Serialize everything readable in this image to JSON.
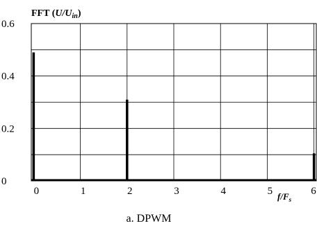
{
  "chart_data": {
    "type": "bar",
    "title": "FFT (U/Uᵢₙ)",
    "title_parts": {
      "prefix": "FFT (",
      "var": "U",
      "sep": "/",
      "var2": "U",
      "sub": "in",
      "suffix": ")"
    },
    "xlabel": "f/Fₛ",
    "xlabel_parts": {
      "main": "f/F",
      "sub": "s"
    },
    "caption": "a. DPWM",
    "xlim": [
      -0.05,
      6.05
    ],
    "ylim": [
      0,
      0.6
    ],
    "x_ticks": [
      0,
      1,
      2,
      3,
      4,
      5,
      6
    ],
    "x_tick_labels": [
      "0",
      "1",
      "2",
      "3",
      "4",
      "5",
      "6"
    ],
    "y_ticks": [
      0,
      0.2,
      0.4,
      0.6
    ],
    "y_tick_labels": [
      "0",
      "0.2",
      "0.4",
      "0.6"
    ],
    "grid": true,
    "series": [
      {
        "x": [
          0,
          2,
          6
        ],
        "values": [
          0.49,
          0.31,
          0.105
        ]
      }
    ],
    "bar_color": "#000000",
    "grid_color": "#000000"
  }
}
